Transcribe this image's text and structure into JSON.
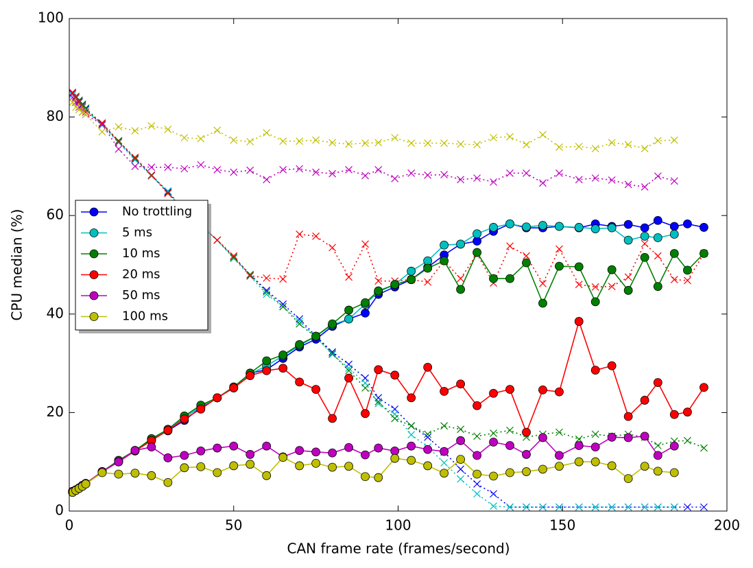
{
  "chart_data": {
    "type": "line",
    "xlabel": "CAN frame rate (frames/second)",
    "ylabel": "CPU median (%)",
    "x": [
      1,
      2,
      3,
      4,
      5,
      10,
      15,
      20,
      25,
      30,
      35,
      40,
      45,
      50,
      55,
      60,
      65,
      70,
      75,
      80,
      85,
      90,
      94,
      99,
      104,
      109,
      114,
      119,
      124,
      129,
      134,
      139,
      144,
      149,
      155,
      160,
      165,
      170,
      175,
      179,
      184,
      188,
      193
    ],
    "xlim": [
      0,
      200
    ],
    "xticks": [
      0,
      50,
      100,
      150,
      200
    ],
    "ylim": [
      0,
      100
    ],
    "yticks": [
      0,
      20,
      40,
      60,
      80,
      100
    ],
    "grid": false,
    "legend": "left",
    "series": [
      {
        "color": "#0000ff",
        "marker": "x",
        "linestyle": "dotted",
        "values": [
          84.8,
          84,
          83.2,
          82.4,
          81.6,
          78.5,
          75,
          71.5,
          68.2,
          64.8,
          61,
          58,
          55,
          51.5,
          48,
          44.8,
          42,
          39,
          35.5,
          32.3,
          29.8,
          27,
          23,
          20.7,
          17.3,
          15,
          12,
          8.5,
          5.5,
          3.5,
          0.8,
          0.8,
          0.8,
          0.8,
          0.8,
          0.8,
          0.8,
          0.8,
          0.8,
          0.8,
          0.8,
          0.8,
          0.8
        ]
      },
      {
        "color": "#00bfbf",
        "marker": "x",
        "linestyle": "dotted",
        "values": [
          84.5,
          83.8,
          83,
          82.2,
          81.4,
          78.3,
          74.8,
          71.3,
          68,
          65,
          61,
          58,
          55,
          51.3,
          47.7,
          44,
          41.5,
          38.5,
          35.3,
          31.8,
          29,
          26,
          21.8,
          19.7,
          15.5,
          13,
          9.8,
          6.5,
          3.5,
          1,
          0.8,
          0.8,
          0.8,
          0.8,
          0.8,
          0.8,
          0.8,
          0.8,
          0.8,
          0.8,
          0.8,
          null,
          null
        ]
      },
      {
        "color": "#008000",
        "marker": "x",
        "linestyle": "dotted",
        "values": [
          85,
          84.2,
          83.4,
          82.6,
          81.8,
          78.6,
          75.2,
          71.6,
          68.2,
          64.6,
          61,
          58,
          55,
          51.5,
          48,
          44.5,
          41.5,
          38,
          35.3,
          32,
          28.5,
          25,
          22.2,
          18.8,
          17.3,
          15.6,
          17.3,
          16.6,
          15.2,
          15.8,
          16.4,
          15,
          15.6,
          16,
          14.6,
          15.6,
          15.2,
          15.6,
          15,
          13.3,
          14.2,
          14.3,
          12.8
        ]
      },
      {
        "color": "#ff0000",
        "marker": "x",
        "linestyle": "dotted",
        "values": [
          85,
          84,
          83,
          82,
          81,
          78.8,
          75,
          71.8,
          68.2,
          64.5,
          61,
          58,
          55,
          51.8,
          47.8,
          47.3,
          47.1,
          56.2,
          55.8,
          53.5,
          47.5,
          54.2,
          46.7,
          46.7,
          47,
          46.5,
          50.8,
          47.2,
          52.2,
          46.3,
          53.8,
          51.8,
          46.2,
          53.2,
          46,
          45.5,
          45.6,
          47.5,
          54.3,
          51.8,
          47,
          46.8,
          52.3
        ]
      },
      {
        "color": "#bf00bf",
        "marker": "x",
        "linestyle": "dotted",
        "values": [
          84,
          83,
          82,
          81,
          80.5,
          78.5,
          73.5,
          70,
          69.8,
          69.8,
          69.5,
          70.3,
          69.3,
          68.8,
          69.2,
          67.3,
          69.3,
          69.5,
          68.8,
          68.5,
          69.3,
          68.1,
          69.3,
          67.5,
          68.6,
          68.2,
          68.3,
          67.3,
          67.6,
          66.8,
          68.6,
          68.6,
          66.6,
          68.6,
          67.3,
          67.6,
          67.2,
          66.3,
          65.8,
          68,
          67,
          null,
          null
        ]
      },
      {
        "color": "#bfbf00",
        "marker": "x",
        "linestyle": "dotted",
        "values": [
          83,
          82,
          81.5,
          81,
          80.5,
          77,
          78,
          77.2,
          78.2,
          77.5,
          75.8,
          75.6,
          77.3,
          75.3,
          75,
          76.8,
          75.1,
          75.1,
          75.3,
          74.8,
          74.5,
          74.7,
          74.8,
          75.8,
          74.7,
          74.7,
          74.7,
          74.5,
          74.4,
          75.8,
          76,
          74.4,
          76.4,
          73.9,
          74,
          73.6,
          74.8,
          74.4,
          73.6,
          75.2,
          75.3,
          null,
          null
        ]
      },
      {
        "name": "No trottling",
        "color": "#0000ff",
        "marker": "o",
        "linestyle": "solid",
        "values": [
          3.8,
          4.2,
          4.6,
          5.1,
          5.5,
          8,
          10,
          12.3,
          14.5,
          16.3,
          18.4,
          21,
          23,
          25,
          28,
          28.7,
          31,
          33.3,
          34.9,
          37.5,
          39,
          40.2,
          44,
          45.5,
          47,
          49.5,
          52,
          54.2,
          54.8,
          56.8,
          58.3,
          57.5,
          57.5,
          57.8,
          57.5,
          58.3,
          57.8,
          58.2,
          57.5,
          59,
          57.8,
          58.3,
          57.6
        ]
      },
      {
        "name": "5 ms",
        "color": "#00bfbf",
        "marker": "o",
        "linestyle": "solid",
        "values": [
          3.9,
          4.3,
          4.7,
          5.2,
          5.6,
          8,
          10.2,
          12.2,
          14.3,
          16.5,
          19,
          21.2,
          23,
          25,
          27.8,
          29.5,
          31.5,
          33.6,
          35.5,
          37.8,
          39,
          42,
          44.5,
          46,
          48.7,
          50.8,
          54,
          54.2,
          56.3,
          57.6,
          58.3,
          57.7,
          58,
          57.8,
          57.6,
          57.3,
          57.5,
          55,
          55.8,
          55.5,
          56.2,
          null,
          null
        ]
      },
      {
        "name": "10 ms",
        "color": "#008000",
        "marker": "o",
        "linestyle": "solid",
        "values": [
          4,
          4.3,
          4.7,
          5.2,
          5.6,
          8,
          10.3,
          12.3,
          14.7,
          16.6,
          19.3,
          21.5,
          23,
          25.2,
          28,
          30.5,
          31.7,
          33.8,
          35.5,
          38,
          40.8,
          42.3,
          44.7,
          46,
          47,
          49.3,
          50.8,
          45,
          52.5,
          47.2,
          47.2,
          50.4,
          42.2,
          49.7,
          49.6,
          42.5,
          49,
          44.8,
          51.5,
          45.6,
          52.3,
          48.9,
          52.3
        ]
      },
      {
        "name": "20 ms",
        "color": "#ff0000",
        "marker": "o",
        "linestyle": "solid",
        "values": [
          4,
          4.3,
          4.7,
          5.2,
          5.6,
          8,
          10,
          12.2,
          14.3,
          16.4,
          18.7,
          20.7,
          23,
          25,
          27.5,
          28.5,
          29,
          26.2,
          24.7,
          18.8,
          27,
          19.8,
          28.7,
          27.6,
          23,
          29.2,
          24.3,
          25.8,
          21.4,
          23.9,
          24.7,
          16,
          24.6,
          24.2,
          38.5,
          28.6,
          29.5,
          19.2,
          22.5,
          26.1,
          19.6,
          20.1,
          25.1
        ]
      },
      {
        "name": "50 ms",
        "color": "#bf00bf",
        "marker": "o",
        "linestyle": "solid",
        "values": [
          4,
          4.3,
          4.7,
          5.2,
          5.6,
          8,
          10,
          12.3,
          13,
          10.8,
          11.3,
          12.2,
          12.8,
          13.2,
          11.5,
          13.2,
          11,
          12.3,
          12,
          11.8,
          12.9,
          11.4,
          12.8,
          12.2,
          13.2,
          12.5,
          12.1,
          14.3,
          11.3,
          14,
          13.3,
          11.5,
          14.9,
          11.3,
          13.3,
          13,
          15,
          14.9,
          15.2,
          11.3,
          13.2,
          null,
          null
        ]
      },
      {
        "name": "100 ms",
        "color": "#bfbf00",
        "marker": "o",
        "linestyle": "solid",
        "values": [
          3.8,
          4.2,
          4.6,
          5,
          5.5,
          7.8,
          7.5,
          7.7,
          7.2,
          5.8,
          8.8,
          9,
          7.8,
          9.2,
          9.5,
          7.2,
          10.9,
          9.2,
          9.7,
          8.9,
          9.1,
          7,
          6.8,
          10.7,
          10.3,
          9.2,
          7.7,
          10.5,
          7.5,
          7.1,
          7.8,
          8,
          8.5,
          9.1,
          10,
          10,
          9.2,
          6.6,
          9.1,
          8.1,
          7.8,
          null,
          null
        ]
      }
    ]
  }
}
